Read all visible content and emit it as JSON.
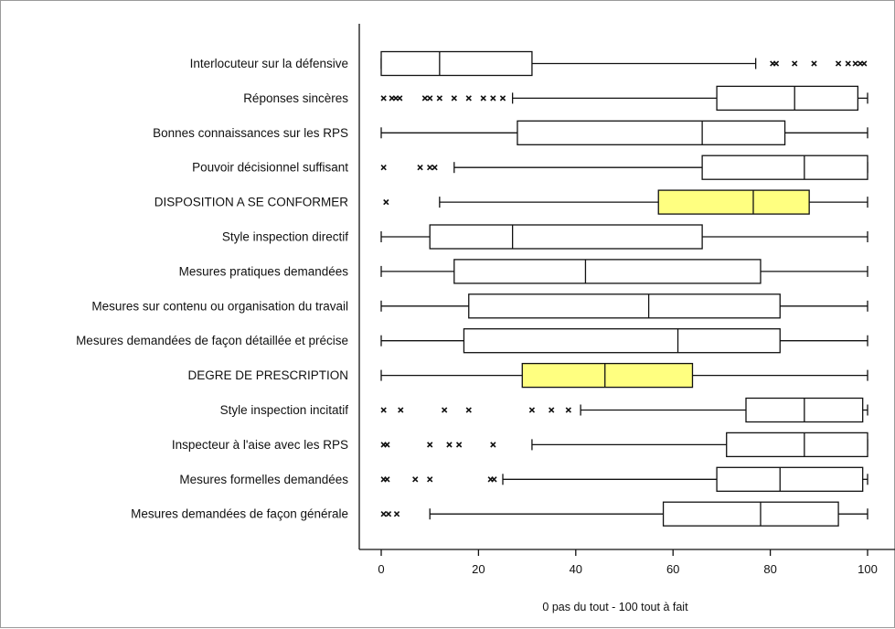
{
  "chart_data": {
    "type": "boxplot",
    "xlabel": "0 pas du tout - 100 tout à fait",
    "xlim": [
      0,
      100
    ],
    "xticks": [
      0,
      20,
      40,
      60,
      80,
      100
    ],
    "highlight_color": "#ffff80",
    "categories": [
      {
        "label": "Interlocuteur sur la défensive",
        "whisker_low": 0,
        "q1": 0,
        "median": 12,
        "q3": 31,
        "whisker_high": 77,
        "outliers": [
          80.5,
          81.2,
          85,
          89,
          94,
          96,
          97.5,
          98.5,
          99.3
        ],
        "highlight": false
      },
      {
        "label": "Réponses sincères",
        "whisker_low": 27,
        "q1": 69,
        "median": 85,
        "q3": 98,
        "whisker_high": 100,
        "outliers": [
          0.5,
          2.2,
          3,
          3.8,
          9,
          10,
          12,
          15,
          18,
          21,
          23,
          25
        ],
        "highlight": false
      },
      {
        "label": "Bonnes connaissances sur les RPS",
        "whisker_low": 0,
        "q1": 28,
        "median": 66,
        "q3": 83,
        "whisker_high": 100,
        "outliers": [],
        "highlight": false
      },
      {
        "label": "Pouvoir décisionnel suffisant",
        "whisker_low": 15,
        "q1": 66,
        "median": 87,
        "q3": 100,
        "whisker_high": 100,
        "outliers": [
          0.5,
          8,
          10,
          11
        ],
        "highlight": false
      },
      {
        "label": "DISPOSITION A SE CONFORMER",
        "whisker_low": 12,
        "q1": 57,
        "median": 76.5,
        "q3": 88,
        "whisker_high": 100,
        "outliers": [
          1
        ],
        "highlight": true
      },
      {
        "label": "Style inspection directif",
        "whisker_low": 0,
        "q1": 10,
        "median": 27,
        "q3": 66,
        "whisker_high": 100,
        "outliers": [],
        "highlight": false
      },
      {
        "label": "Mesures pratiques demandées",
        "whisker_low": 0,
        "q1": 15,
        "median": 42,
        "q3": 78,
        "whisker_high": 100,
        "outliers": [],
        "highlight": false
      },
      {
        "label": "Mesures sur contenu ou organisation du travail",
        "whisker_low": 0,
        "q1": 18,
        "median": 55,
        "q3": 82,
        "whisker_high": 100,
        "outliers": [],
        "highlight": false
      },
      {
        "label": "Mesures demandées de façon détaillée et précise",
        "whisker_low": 0,
        "q1": 17,
        "median": 61,
        "q3": 82,
        "whisker_high": 100,
        "outliers": [],
        "highlight": false
      },
      {
        "label": "DEGRE DE PRESCRIPTION",
        "whisker_low": 0,
        "q1": 29,
        "median": 46,
        "q3": 64,
        "whisker_high": 100,
        "outliers": [],
        "highlight": true
      },
      {
        "label": "Style inspection incitatif",
        "whisker_low": 41,
        "q1": 75,
        "median": 87,
        "q3": 99,
        "whisker_high": 100,
        "outliers": [
          0.5,
          4,
          13,
          18,
          31,
          35,
          38.5
        ],
        "highlight": false
      },
      {
        "label": "Inspecteur à l'aise avec les RPS",
        "whisker_low": 31,
        "q1": 71,
        "median": 87,
        "q3": 100,
        "whisker_high": 100,
        "outliers": [
          0.5,
          1.2,
          10,
          14,
          16,
          23
        ],
        "highlight": false
      },
      {
        "label": "Mesures formelles demandées",
        "whisker_low": 25,
        "q1": 69,
        "median": 82,
        "q3": 99,
        "whisker_high": 100,
        "outliers": [
          0.5,
          1.2,
          7,
          10,
          22.5,
          23.2
        ],
        "highlight": false
      },
      {
        "label": "Mesures demandées de façon générale",
        "whisker_low": 10,
        "q1": 58,
        "median": 78,
        "q3": 94,
        "whisker_high": 100,
        "outliers": [
          0.5,
          1.5,
          3.2
        ],
        "highlight": false
      }
    ]
  }
}
